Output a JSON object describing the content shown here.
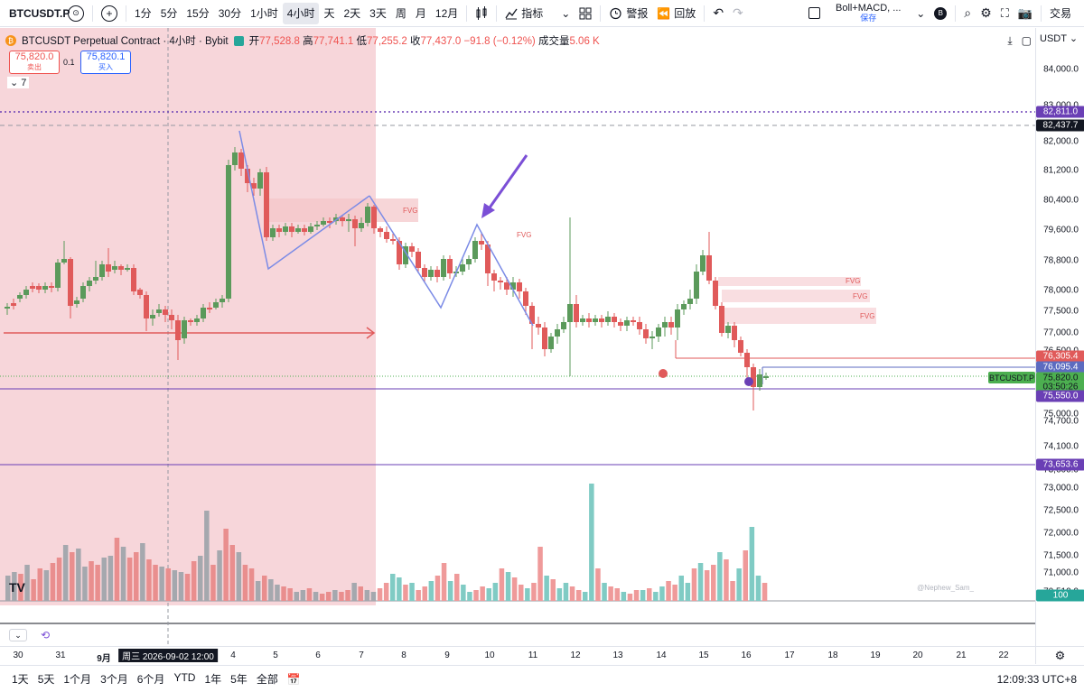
{
  "toolbar": {
    "symbol": "BTCUSDT.P",
    "intervals": [
      "1分",
      "5分",
      "15分",
      "30分",
      "1小时",
      "4小时",
      "天",
      "2天",
      "3天",
      "周",
      "月",
      "12月"
    ],
    "active_interval": "4小时",
    "indicators_label": "指标",
    "alert_label": "警报",
    "replay_label": "回放",
    "template_name": "Boll+MACD, ...",
    "template_status": "保存",
    "badge": "B",
    "trade_label": "交易"
  },
  "legend": {
    "title": "BTCUSDT Perpetual Contract · 4小时 · Bybit",
    "open_label": "开",
    "open": "77,528.8",
    "high_label": "高",
    "high": "77,741.1",
    "low_label": "低",
    "low": "77,255.2",
    "close_label": "收",
    "close": "77,437.0",
    "change": "−91.8 (−0.12%)",
    "volume_label": "成交量",
    "volume": "5.06 K",
    "collapse_count": "7"
  },
  "trade": {
    "sell_price": "75,820.0",
    "sell_label": "卖出",
    "qty": "0.1",
    "buy_price": "75,820.1",
    "buy_label": "买入"
  },
  "price_axis": {
    "currency": "USDT",
    "ticks": [
      "84,000.0",
      "83,000.0",
      "82,000.0",
      "81,200.0",
      "80,400.0",
      "79,600.0",
      "78,800.0",
      "78,000.0",
      "77,500.0",
      "77,000.0",
      "76,500.0",
      "75,000.0",
      "74,700.0",
      "74,100.0",
      "73,600.0",
      "73,000.0",
      "72,500.0",
      "72,000.0",
      "71,500.0",
      "71,000.0",
      "70,510.0"
    ],
    "tags": {
      "dotted_line": "82,811.0",
      "dashed_line": "82,437.7",
      "red_line_1": "76,305.4",
      "blue_line": "76,095.4",
      "current": "75,820.0",
      "countdown": "03:50:26",
      "purple_line": "75,550.0",
      "lower_purple": "73,653.6",
      "volume": "100"
    },
    "symbol_tag": "BTCUSDT.P"
  },
  "time_axis": {
    "ticks": [
      "30",
      "31",
      "9月",
      "4",
      "5",
      "6",
      "7",
      "8",
      "9",
      "10",
      "11",
      "12",
      "13",
      "14",
      "15",
      "16",
      "17",
      "18",
      "19",
      "20",
      "21",
      "22"
    ],
    "crosshair": "周三 2026-09-02   12:00"
  },
  "annotations": {
    "fvg": "FVG",
    "watermark": "@Nephew_Sam_",
    "logo": "TV"
  },
  "bottom": {
    "ranges": [
      "1天",
      "5天",
      "1个月",
      "3个月",
      "6个月",
      "YTD",
      "1年",
      "5年",
      "全部"
    ],
    "clock": "12:09:33 UTC+8"
  },
  "colors": {
    "up": "#26a69a",
    "up_candle": "#5b9a5b",
    "down": "#e05a5a",
    "accent": "#2962ff",
    "highlight": "#f7d6da",
    "zigzag": "#7b8be6",
    "purple": "#6a3fb5"
  }
}
